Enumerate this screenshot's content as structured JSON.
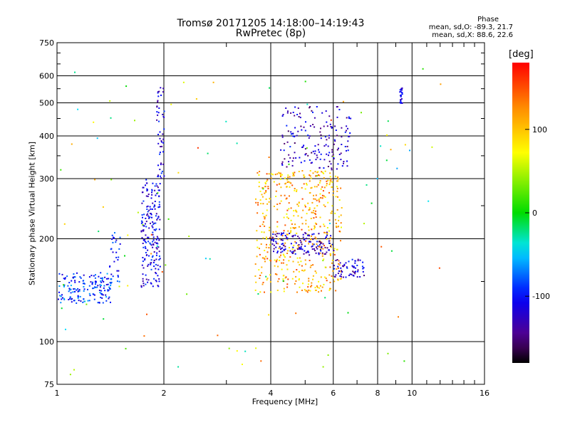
{
  "header": {
    "title": "Tromsø 20171205 14:18:00–14:19:43",
    "subtitle": "RwPretec (8p)"
  },
  "phase_stats": {
    "heading": "Phase",
    "o_line": "mean, sd,O: -89.3, 21.7",
    "x_line": "mean, sd,X:  88.6, 22.6"
  },
  "colorbar": {
    "unit": "[deg]",
    "ticks": [
      "100",
      "0",
      "-100"
    ],
    "tick_values": [
      100,
      0,
      -100
    ],
    "range": [
      -180,
      180
    ]
  },
  "chart_data": {
    "type": "scatter",
    "title": "Tromsø 20171205 14:18:00–14:19:43",
    "subtitle": "RwPretec (8p)",
    "xlabel": "Frequency [MHz]",
    "ylabel": "Stationary phase Virtual Height [km]",
    "xscale": "log",
    "yscale": "log",
    "xlim": [
      1,
      16
    ],
    "ylim": [
      75,
      750
    ],
    "xticks": [
      1,
      2,
      4,
      6,
      8,
      10,
      16
    ],
    "xtick_labels": [
      "1",
      "2",
      "4",
      "6",
      "8",
      "10",
      "16"
    ],
    "yticks": [
      75,
      100,
      200,
      300,
      400,
      500,
      600,
      750
    ],
    "ytick_labels": [
      "75",
      "100",
      "200",
      "300",
      "400",
      "500",
      "600",
      "750"
    ],
    "grid": true,
    "color_scale": "phase [deg], -180 to 180",
    "clusters": [
      {
        "x_range": [
          1.0,
          1.42
        ],
        "y_range": [
          130,
          160
        ],
        "phase_center": -90
      },
      {
        "x_range": [
          1.4,
          1.5
        ],
        "y_range": [
          150,
          210
        ],
        "phase_center": -100
      },
      {
        "x_range": [
          1.72,
          1.95
        ],
        "y_range": [
          145,
          300
        ],
        "phase_center": -110
      },
      {
        "x_range": [
          1.9,
          2.0
        ],
        "y_range": [
          300,
          560
        ],
        "phase_center": -115
      },
      {
        "x_range": [
          3.6,
          6.3
        ],
        "y_range": [
          140,
          320
        ],
        "phase_center": 110
      },
      {
        "x_range": [
          4.0,
          6.0
        ],
        "y_range": [
          180,
          210
        ],
        "phase_center": -125
      },
      {
        "x_range": [
          4.2,
          6.7
        ],
        "y_range": [
          320,
          490
        ],
        "phase_center": -125
      },
      {
        "x_range": [
          6.0,
          7.3
        ],
        "y_range": [
          155,
          175
        ],
        "phase_center": -120
      },
      {
        "x_range": [
          9.2,
          9.35
        ],
        "y_range": [
          500,
          560
        ],
        "phase_center": -110
      },
      {
        "x_range": [
          1.0,
          12.0
        ],
        "y_range": [
          80,
          650
        ],
        "phase_center": 50
      }
    ]
  }
}
